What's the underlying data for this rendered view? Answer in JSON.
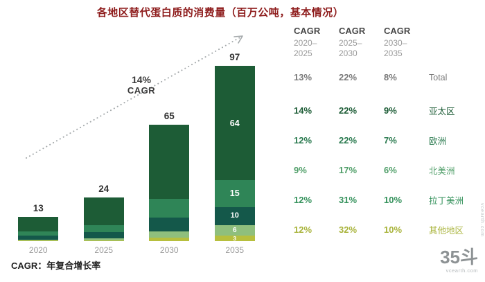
{
  "footnote": "CAGR：年复合增长率",
  "watermarks": {
    "logo": "35斗",
    "logo_site": "vcearth.com",
    "side_site": "vcearth.com"
  },
  "chart_data": {
    "type": "stacked-bar",
    "title": "各地区替代蛋白质的消费量（百万公吨，基本情况）",
    "categories": [
      "2020",
      "2025",
      "2030",
      "2035"
    ],
    "totals": [
      13,
      24,
      65,
      97
    ],
    "series": [
      {
        "name": "亚太区",
        "color": "#1d5c36",
        "values": [
          8.1,
          15.4,
          41.6,
          64
        ]
      },
      {
        "name": "欧洲",
        "color": "#2f8557",
        "values": [
          2.3,
          4.0,
          10.7,
          15
        ]
      },
      {
        "name": "北美洲",
        "color": "#14584a",
        "values": [
          2.2,
          3.4,
          7.5,
          10
        ]
      },
      {
        "name": "拉丁美洲",
        "color": "#8fbf7d",
        "values": [
          0.5,
          1.0,
          3.7,
          6
        ]
      },
      {
        "name": "其他地区",
        "color": "#b7bf3e",
        "values": [
          0.3,
          0.5,
          1.9,
          3
        ]
      }
    ],
    "annotation": {
      "line1": "14%",
      "line2": "CAGR"
    },
    "ylim": [
      0,
      100
    ],
    "legend_position": "none",
    "grid": false
  },
  "table": {
    "headers": [
      {
        "title": "CAGR",
        "r1": "2020–",
        "r2": "2025"
      },
      {
        "title": "CAGR",
        "r1": "2025–",
        "r2": "2030"
      },
      {
        "title": "CAGR",
        "r1": "2030–",
        "r2": "2035"
      }
    ],
    "rows": [
      {
        "label": "Total",
        "color": "#7a7a7a",
        "values": [
          "13%",
          "22%",
          "8%"
        ]
      },
      {
        "label": "亚太区",
        "color": "#1d5c36",
        "values": [
          "14%",
          "22%",
          "9%"
        ]
      },
      {
        "label": "欧洲",
        "color": "#2a7a4f",
        "values": [
          "12%",
          "22%",
          "7%"
        ]
      },
      {
        "label": "北美洲",
        "color": "#4f9e68",
        "values": [
          "9%",
          "17%",
          "6%"
        ]
      },
      {
        "label": "拉丁美洲",
        "color": "#35925c",
        "values": [
          "12%",
          "31%",
          "10%"
        ]
      },
      {
        "label": "其他地区",
        "color": "#a9b43c",
        "values": [
          "12%",
          "32%",
          "10%"
        ]
      }
    ]
  }
}
